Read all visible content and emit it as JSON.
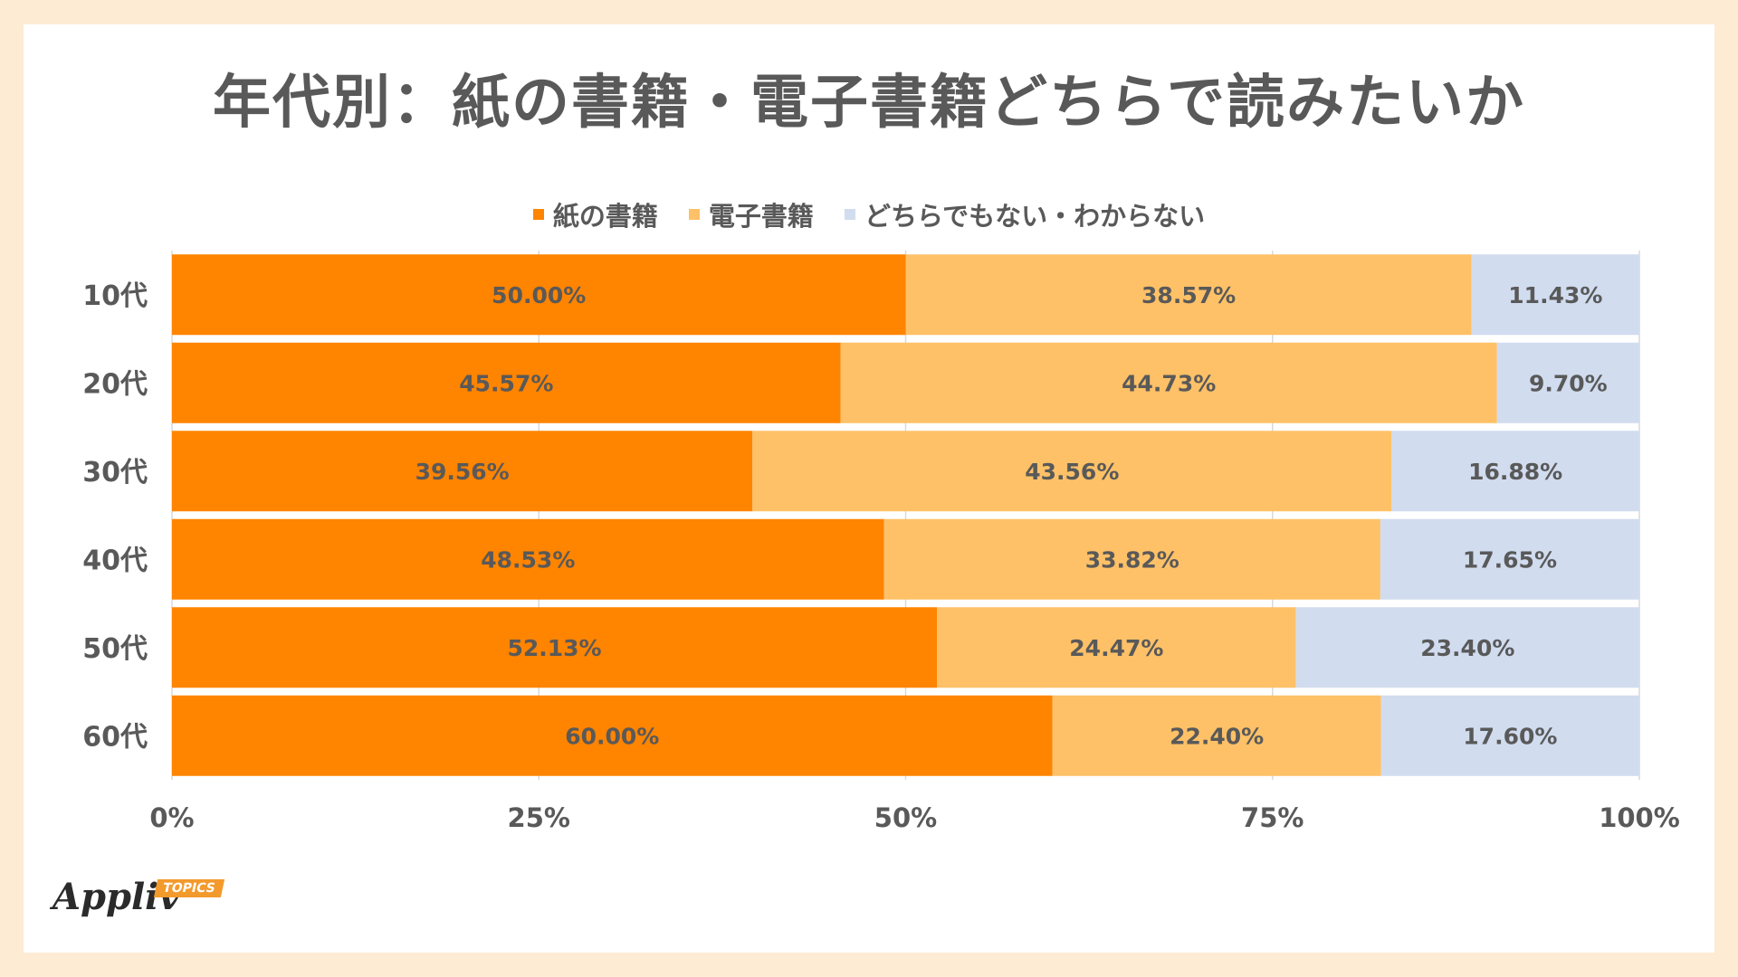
{
  "title": "年代別：紙の書籍・電子書籍どちらで読みたいか",
  "logo": {
    "name": "Appliv",
    "badge": "TOPICS"
  },
  "chart_data": {
    "type": "bar",
    "orientation": "horizontal",
    "stacked": "percent",
    "title": "年代別：紙の書籍・電子書籍どちらで読みたいか",
    "categories": [
      "10代",
      "20代",
      "30代",
      "40代",
      "50代",
      "60代"
    ],
    "series": [
      {
        "name": "紙の書籍",
        "color": "#FF8400",
        "values": [
          50.0,
          45.57,
          39.56,
          48.53,
          52.13,
          60.0
        ]
      },
      {
        "name": "電子書籍",
        "color": "#FEC167",
        "values": [
          38.57,
          44.73,
          43.56,
          33.82,
          24.47,
          22.4
        ]
      },
      {
        "name": "どちらでもない・わからない",
        "color": "#D1DCEF",
        "values": [
          11.43,
          9.7,
          16.88,
          17.65,
          23.4,
          17.6
        ]
      }
    ],
    "data_labels": [
      [
        "50.00%",
        "45.57%",
        "39.56%",
        "48.53%",
        "52.13%",
        "60.00%"
      ],
      [
        "38.57%",
        "44.73%",
        "43.56%",
        "33.82%",
        "24.47%",
        "22.40%"
      ],
      [
        "11.43%",
        "9.70%",
        "16.88%",
        "17.65%",
        "23.40%",
        "17.60%"
      ]
    ],
    "xlim": [
      0,
      100
    ],
    "x_ticks": [
      "0%",
      "25%",
      "50%",
      "75%",
      "100%"
    ],
    "grid": true,
    "legend_position": "top"
  }
}
